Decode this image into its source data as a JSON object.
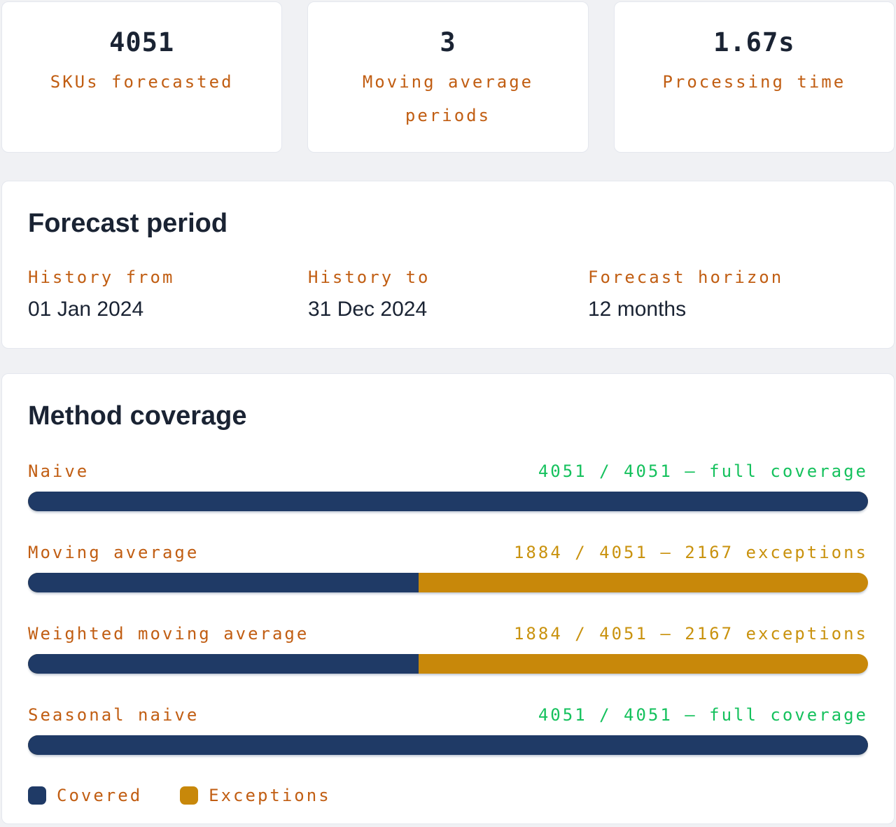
{
  "colors": {
    "page_bg": "#f0f1f4",
    "card_bg": "#ffffff",
    "card_border": "#e4e7ee",
    "navy_text": "#1a2333",
    "orange": "#c15e13",
    "green": "#15c15d",
    "gold_text": "#c9920e",
    "bar_covered": "#1f3a66",
    "bar_exceptions": "#c8880a"
  },
  "stats": [
    {
      "value": "4051",
      "label": "SKUs forecasted"
    },
    {
      "value": "3",
      "label": "Moving average periods"
    },
    {
      "value": "1.67s",
      "label": "Processing time"
    }
  ],
  "forecast_period": {
    "title": "Forecast period",
    "fields": [
      {
        "label": "History from",
        "value": "01 Jan 2024"
      },
      {
        "label": "History to",
        "value": "31 Dec 2024"
      },
      {
        "label": "Forecast horizon",
        "value": "12 months"
      }
    ]
  },
  "method_coverage": {
    "title": "Method coverage",
    "rows": [
      {
        "method": "Naive",
        "status": "4051 / 4051 — full coverage",
        "covered": 4051,
        "total": 4051,
        "exceptions": 0,
        "covered_pct": 100,
        "status_type": "full"
      },
      {
        "method": "Moving average",
        "status": "1884 / 4051 — 2167 exceptions",
        "covered": 1884,
        "total": 4051,
        "exceptions": 2167,
        "covered_pct": 46.5,
        "status_type": "exceptions"
      },
      {
        "method": "Weighted moving average",
        "status": "1884 / 4051 — 2167 exceptions",
        "covered": 1884,
        "total": 4051,
        "exceptions": 2167,
        "covered_pct": 46.5,
        "status_type": "exceptions"
      },
      {
        "method": "Seasonal naive",
        "status": "4051 / 4051 — full coverage",
        "covered": 4051,
        "total": 4051,
        "exceptions": 0,
        "covered_pct": 100,
        "status_type": "full"
      }
    ],
    "legend": [
      {
        "label": "Covered",
        "color": "#1f3a66"
      },
      {
        "label": "Exceptions",
        "color": "#c8880a"
      }
    ]
  }
}
